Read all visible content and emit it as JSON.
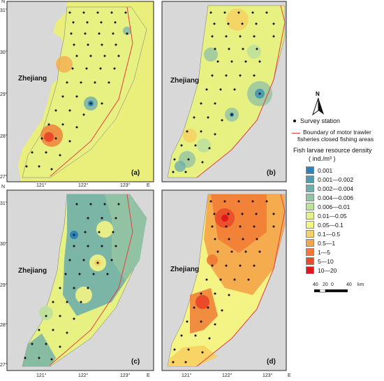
{
  "figure": {
    "north_label": "N",
    "province_label": "Zhejiang",
    "east_label": "E",
    "north_tick_label": "N"
  },
  "panels": [
    {
      "letter": "(a)",
      "lat_ticks": [
        "31°",
        "30°",
        "29°",
        "28°",
        "27°"
      ],
      "lon_ticks": [
        "121°",
        "122°",
        "123°"
      ]
    },
    {
      "letter": "(b)",
      "lat_ticks": [],
      "lon_ticks": []
    },
    {
      "letter": "(c)",
      "lat_ticks": [
        "31°",
        "30°",
        "29°",
        "28°",
        "27°"
      ],
      "lon_ticks": [
        "121°",
        "122°",
        "123°"
      ]
    },
    {
      "letter": "(d)",
      "lat_ticks": [],
      "lon_ticks": [
        "121°",
        "122°",
        "123°"
      ]
    }
  ],
  "legend": {
    "survey_station": "Survey station",
    "boundary_line1": "Boundary of motor trawler",
    "boundary_line2": "fisheries closed fishing areas",
    "density_title": "Fish larvae resource density",
    "density_unit": "( ind./m³ )",
    "classes": [
      {
        "label": "0.001",
        "color": "#2b83ba"
      },
      {
        "label": "0.001—0.002",
        "color": "#4f9cb0"
      },
      {
        "label": "0.002—0.004",
        "color": "#6faeaa"
      },
      {
        "label": "0.004—0.006",
        "color": "#93c3a3"
      },
      {
        "label": "0.006—0.01",
        "color": "#bde09a"
      },
      {
        "label": "0.01—0.05",
        "color": "#e3f08e"
      },
      {
        "label": "0.05—0.1",
        "color": "#f4f484"
      },
      {
        "label": "0.1—0.5",
        "color": "#f8d060"
      },
      {
        "label": "0.5—1",
        "color": "#f5a449"
      },
      {
        "label": "1—5",
        "color": "#f07a33"
      },
      {
        "label": "5—10",
        "color": "#e84a2a"
      },
      {
        "label": "10—20",
        "color": "#e3161c"
      }
    ],
    "scale_ticks": [
      "40",
      "20",
      "0",
      "40"
    ],
    "scale_unit": "km"
  }
}
